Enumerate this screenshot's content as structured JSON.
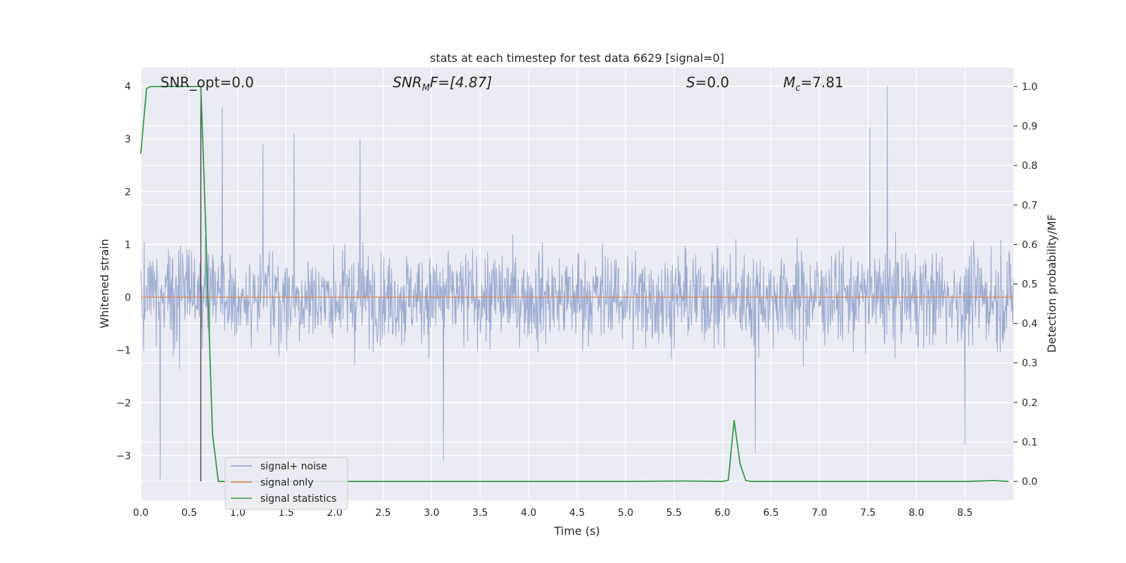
{
  "chart_data": {
    "type": "line",
    "title": "stats at each timestep for test data 6629 [signal=0]",
    "xlabel": "Time (s)",
    "ylabel": "Whitened strain",
    "y2label": "Detection probability/MF",
    "xlim": [
      0.0,
      9.0
    ],
    "ylim": [
      -3.85,
      4.35
    ],
    "y2lim": [
      -0.048,
      1.048
    ],
    "grid": true,
    "legend_position": "lower-left",
    "x_ticks": [
      "0.0",
      "0.5",
      "1.0",
      "1.5",
      "2.0",
      "2.5",
      "3.0",
      "3.5",
      "4.0",
      "4.5",
      "5.0",
      "5.5",
      "6.0",
      "6.5",
      "7.0",
      "7.5",
      "8.0",
      "8.5"
    ],
    "y_ticks": [
      "4",
      "3",
      "2",
      "1",
      "0",
      "−1",
      "−2",
      "−3"
    ],
    "y2_ticks": [
      "1.0",
      "0.9",
      "0.8",
      "0.7",
      "0.6",
      "0.5",
      "0.4",
      "0.3",
      "0.2",
      "0.1",
      "0.0"
    ],
    "annotations": {
      "snr_opt": "SNR_opt=0.0",
      "snr_mf_main": "SNR",
      "snr_mf_sub": "M",
      "snr_mf_tail": "F=[4.87]",
      "s_main": "S",
      "s_tail": "=0.0",
      "mc_main": "M",
      "mc_sub": "c",
      "mc_tail": "=7.81"
    },
    "marker_line_x": 0.62,
    "series": [
      {
        "name": "signal+ noise",
        "axis": "left",
        "color": "#8da0cb",
        "sample_count": 1800,
        "band_typical": [
          -1.25,
          1.35
        ],
        "peaks": [
          {
            "x": 0.84,
            "y": 3.6
          },
          {
            "x": 1.26,
            "y": 2.9
          },
          {
            "x": 1.58,
            "y": 3.1
          },
          {
            "x": 2.26,
            "y": 3.0
          },
          {
            "x": 7.52,
            "y": 3.2
          },
          {
            "x": 7.7,
            "y": 4.0
          },
          {
            "x": 3.12,
            "y": -3.1
          },
          {
            "x": 0.2,
            "y": -3.45
          },
          {
            "x": 6.34,
            "y": -2.95
          },
          {
            "x": 8.5,
            "y": -2.8
          }
        ]
      },
      {
        "name": "signal only",
        "axis": "left",
        "color": "#dd8452",
        "x": [
          0.0,
          9.0
        ],
        "y": [
          0.0,
          0.0
        ]
      },
      {
        "name": "signal statistics",
        "axis": "right",
        "color": "#3a9a48",
        "x": [
          0.0,
          0.06,
          0.1,
          0.2,
          0.3,
          0.4,
          0.5,
          0.6,
          0.62,
          0.66,
          0.7,
          0.74,
          0.8,
          1.0,
          2.0,
          3.0,
          4.0,
          5.0,
          5.6,
          6.0,
          6.06,
          6.12,
          6.18,
          6.24,
          6.3,
          6.5,
          7.0,
          7.5,
          8.0,
          8.5,
          8.8,
          8.95
        ],
        "y": [
          0.83,
          0.995,
          1.0,
          1.0,
          1.0,
          1.0,
          1.0,
          1.0,
          1.0,
          0.72,
          0.42,
          0.12,
          0.0,
          0.0,
          0.0,
          0.0,
          0.0,
          0.0,
          0.001,
          0.0,
          0.003,
          0.155,
          0.045,
          0.002,
          0.0,
          0.0,
          0.0,
          0.0,
          0.0,
          0.0,
          0.002,
          0.0
        ]
      }
    ]
  }
}
